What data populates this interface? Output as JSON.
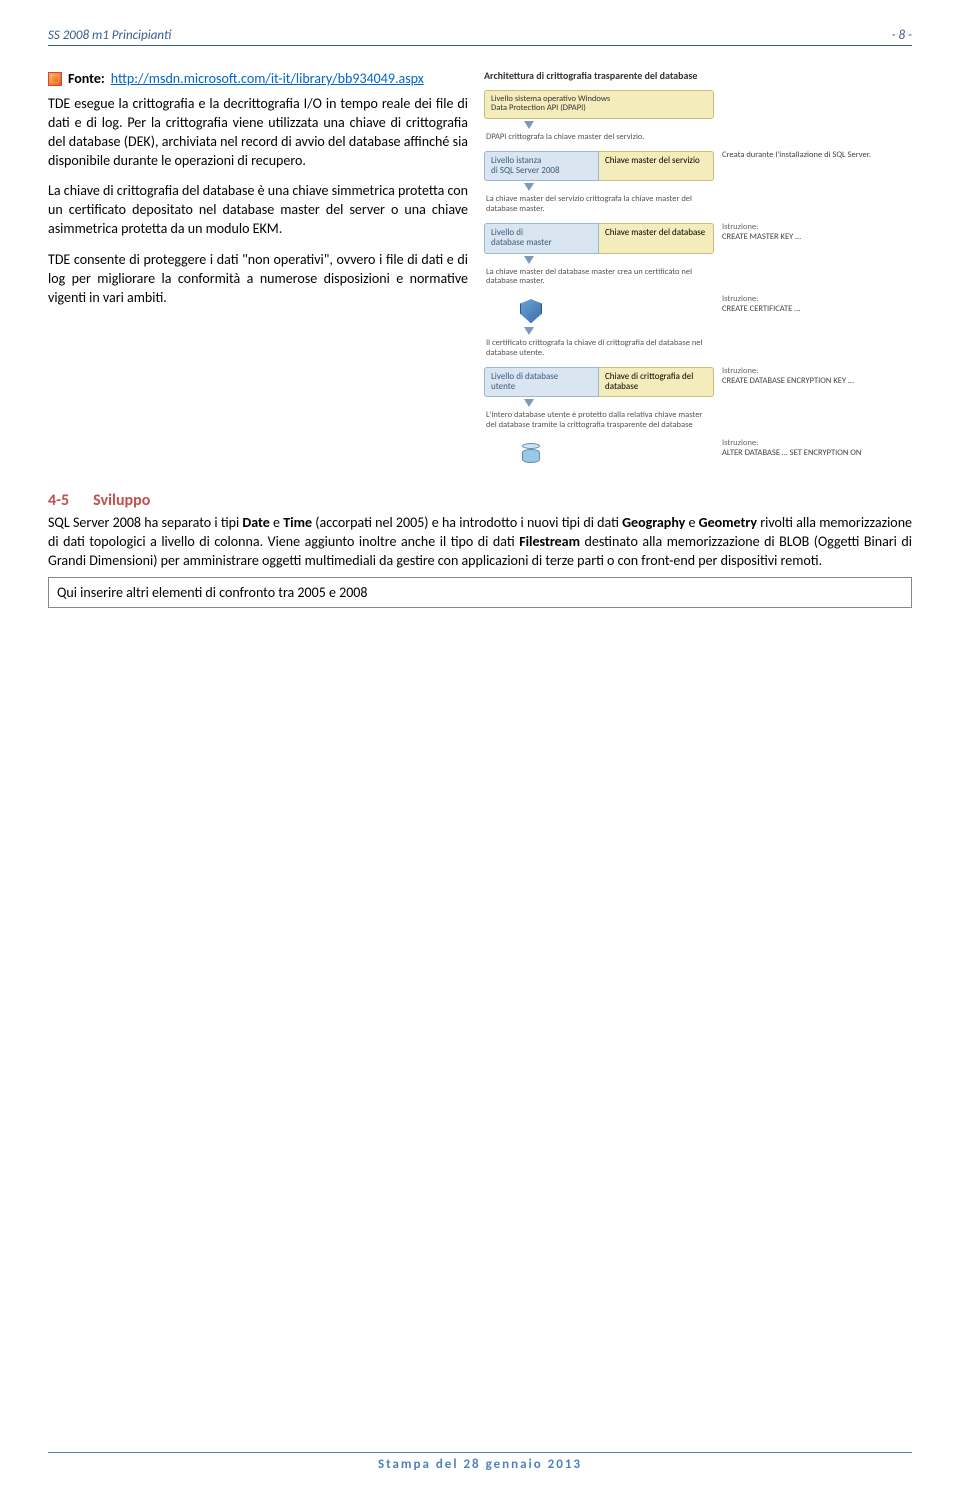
{
  "header": {
    "left": "SS 2008 m1 Principianti",
    "right": "- 8 -"
  },
  "fonte": {
    "label": "Fonte:",
    "url": "http://msdn.microsoft.com/it-it/library/bb934049.aspx"
  },
  "paragraphs": {
    "p1": "TDE esegue la crittografia e la decrittografia I/O in tempo reale dei file di dati e di log. Per la crittografia viene utilizzata una chiave di crittografia del database (DEK), archiviata nel record di avvio del database affinché sia disponibile durante le operazioni di recupero.",
    "p2": "La chiave di crittografia del database è una chiave simmetrica protetta con un certificato depositato nel database master del server o una chiave asimmetrica protetta da un modulo EKM.",
    "p3": "TDE consente di proteggere i dati \"non operativi\", ovvero i file di dati e di log per migliorare la conformità a numerose disposizioni e normative vigenti in vari ambiti."
  },
  "diagram": {
    "title": "Architettura di crittografia trasparente del database",
    "box1": "Livello sistema operativo Windows\nData Protection API (DPAPI)",
    "cap1": "DPAPI crittografa la chiave master del servizio.",
    "box2_left": "Livello istanza\ndi SQL Server 2008",
    "box2_right": "Chiave master del servizio",
    "istr2": "Creata durante l'installazione di SQL Server.",
    "cap2": "La chiave master del servizio crittografa la chiave master del database master.",
    "box3_left": "Livello di\ndatabase master",
    "box3_right": "Chiave master del database",
    "istr3_lbl": "Istruzione:",
    "istr3": "CREATE MASTER KEY …",
    "cap3": "La chiave master del database master crea un certificato nel database master.",
    "istr4_lbl": "Istruzione:",
    "istr4": "CREATE CERTIFICATE …",
    "cap4": "Il certificato crittografa la chiave di crittografia del database nel database utente.",
    "box5_left": "Livello di database\nutente",
    "box5_right": "Chiave di crittografia del database",
    "istr5_lbl": "Istruzione:",
    "istr5": "CREATE DATABASE ENCRYPTION KEY …",
    "cap5": "L'intero database utente è protetto dalla relativa chiave master del database tramite la crittografia trasparente del database",
    "istr6_lbl": "Istruzione:",
    "istr6": "ALTER DATABASE … SET ENCRYPTION ON"
  },
  "section": {
    "num": "4-5",
    "title": "Sviluppo",
    "body_parts": {
      "t1": "SQL Server 2008 ha separato i tipi ",
      "b1": "Date",
      "t2": " e ",
      "b2": "Time",
      "t3": " (accorpati nel 2005) e ha introdotto i nuovi tipi di dati ",
      "b3": "Geography",
      "t4": " e ",
      "b4": "Geometry",
      "t5": " rivolti alla memorizzazione di dati topologici a livello di colonna. Viene aggiunto inoltre anche il tipo di dati ",
      "b5": "Filestream",
      "t6": " destinato alla memorizzazione di BLOB (Oggetti Binari di Grandi Dimensioni) per amministrare oggetti multimediali da gestire con applicazioni di terze parti o con front-end per dispositivi remoti."
    },
    "note": "Qui inserire altri elementi di confronto tra 2005 e 2008"
  },
  "footer": "Stampa del 28 gennaio 2013"
}
